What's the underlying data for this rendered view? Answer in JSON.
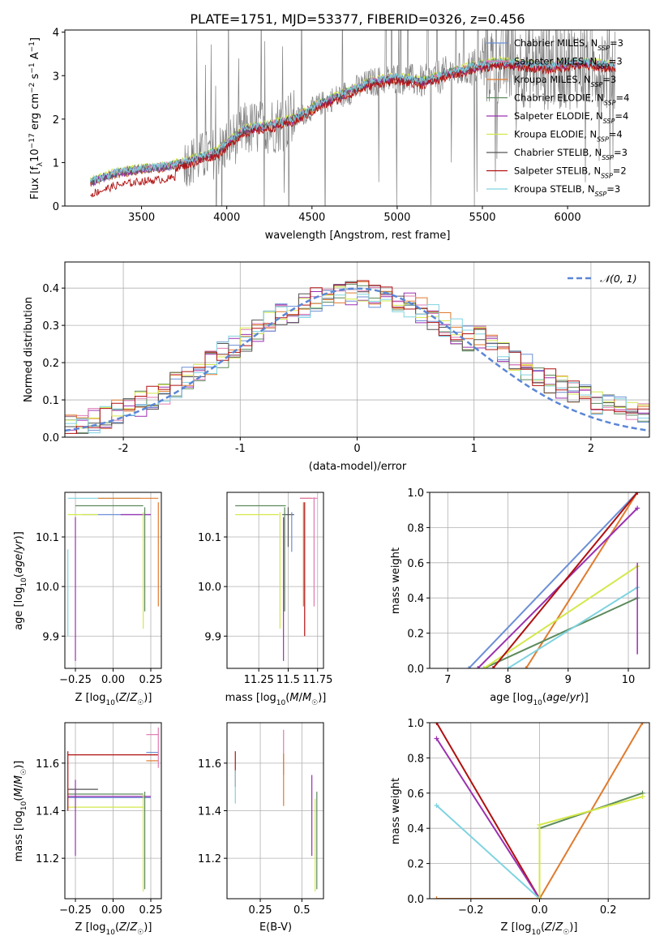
{
  "figure_title": "PLATE=1751, MJD=53377, FIBERID=0326, z=0.456",
  "series_legend": [
    {
      "label": "Chabrier MILES, N",
      "sub": "SSP",
      "tail": "=3",
      "color": "#6b8fd6"
    },
    {
      "label": "Salpeter MILES, N",
      "sub": "SSP",
      "tail": "=3",
      "color": "#e07ab2"
    },
    {
      "label": "Kroupa MILES, N",
      "sub": "SSP",
      "tail": "=3",
      "color": "#e07b2e"
    },
    {
      "label": "Chabrier ELODIE, N",
      "sub": "SSP",
      "tail": "=4",
      "color": "#5c8a5c"
    },
    {
      "label": "Salpeter ELODIE, N",
      "sub": "SSP",
      "tail": "=4",
      "color": "#9b30b0"
    },
    {
      "label": "Kroupa ELODIE, N",
      "sub": "SSP",
      "tail": "=4",
      "color": "#d4e84a"
    },
    {
      "label": "Chabrier STELIB, N",
      "sub": "SSP",
      "tail": "=3",
      "color": "#555555"
    },
    {
      "label": "Salpeter STELIB, N",
      "sub": "SSP",
      "tail": "=2",
      "color": "#b01010"
    },
    {
      "label": "Kroupa STELIB, N",
      "sub": "SSP",
      "tail": "=3",
      "color": "#7fd3e0"
    }
  ],
  "chart_data": [
    {
      "type": "line",
      "title": "PLATE=1751, MJD=53377, FIBERID=0326, z=0.456",
      "xlabel": "wavelength [Angstrom, rest frame]",
      "ylabel": "Flux [f_λ 10^-17 erg cm^-2 s^-1 A^-1]",
      "xlim": [
        3050,
        6480
      ],
      "ylim": [
        0,
        4.05
      ],
      "xticks": [
        3500,
        4000,
        4500,
        5000,
        5500,
        6000
      ],
      "yticks": [
        0,
        1,
        2,
        3,
        4
      ],
      "data_color": "#808080",
      "continuum_x": [
        3200,
        3350,
        3500,
        3650,
        3800,
        3950,
        4100,
        4250,
        4400,
        4550,
        4700,
        4850,
        5000,
        5150,
        5300,
        5450,
        5600,
        5750,
        5900,
        6050,
        6200,
        6280
      ],
      "continuum_y": [
        0.55,
        0.75,
        0.85,
        0.9,
        1.05,
        1.25,
        1.75,
        1.85,
        2.0,
        2.35,
        2.6,
        2.85,
        2.95,
        2.85,
        3.05,
        3.2,
        3.3,
        3.25,
        3.2,
        3.3,
        3.25,
        3.2
      ]
    },
    {
      "type": "line",
      "xlabel": "(data-model)/error",
      "ylabel": "Normed distribution",
      "xlim": [
        -2.5,
        2.5
      ],
      "ylim": [
        0,
        0.47
      ],
      "xticks": [
        -2,
        -1,
        0,
        1,
        2
      ],
      "yticks": [
        0.0,
        0.1,
        0.2,
        0.3,
        0.4
      ],
      "grid": true,
      "reference_curve": {
        "label": "𝒩(0, 1)",
        "color": "#5b86d6",
        "style": "dashed"
      },
      "legend_position": "upper right",
      "histogram_bin_width": 0.1,
      "histogram_peak": 0.4
    },
    {
      "type": "scatter",
      "xlabel": "Z [log10(Z/Z☉)]",
      "ylabel": "age [log10(age/yr)]",
      "xlim": [
        -0.32,
        0.32
      ],
      "ylim": [
        9.835,
        10.19
      ],
      "xticks": [
        -0.25,
        0.0,
        0.25
      ],
      "xticklabels": [
        "−0.25",
        "0.00",
        "0.25"
      ],
      "yticks": [
        9.9,
        10.0,
        10.1
      ],
      "grid": true,
      "segments": [
        {
          "series": 8,
          "x": [
            -0.3,
            0.18
          ],
          "y": [
            10.178,
            10.178
          ]
        },
        {
          "series": 2,
          "x": [
            -0.1,
            0.3
          ],
          "y": [
            10.178,
            10.178
          ]
        },
        {
          "series": 3,
          "x": [
            -0.25,
            0.2
          ],
          "y": [
            10.163,
            10.163
          ]
        },
        {
          "series": 0,
          "x": [
            -0.2,
            0.25
          ],
          "y": [
            10.145,
            10.145
          ]
        },
        {
          "series": 5,
          "x": [
            -0.3,
            -0.1
          ],
          "y": [
            10.145,
            10.145
          ]
        },
        {
          "series": 4,
          "x": [
            0.05,
            0.25
          ],
          "y": [
            10.145,
            10.145
          ]
        },
        {
          "series": 8,
          "vx": -0.3,
          "y": [
            9.9,
            10.075
          ]
        },
        {
          "series": 4,
          "vx": -0.25,
          "y": [
            9.85,
            10.14
          ]
        },
        {
          "series": 5,
          "vx": 0.2,
          "y": [
            9.915,
            10.15
          ]
        },
        {
          "series": 3,
          "vx": 0.21,
          "y": [
            9.95,
            10.16
          ]
        },
        {
          "series": 2,
          "vx": 0.3,
          "y": [
            9.96,
            10.17
          ]
        }
      ]
    },
    {
      "type": "scatter",
      "xlabel": "mass [log10(M/M☉)]",
      "xlim": [
        10.98,
        11.8
      ],
      "ylim": [
        9.835,
        10.19
      ],
      "xticks": [
        11.25,
        11.5,
        11.75
      ],
      "yticks": [
        9.9,
        10.0,
        10.1
      ],
      "grid": true,
      "segments": [
        {
          "series": 3,
          "x": [
            11.05,
            11.48
          ],
          "y": [
            10.163,
            10.163
          ]
        },
        {
          "series": 5,
          "x": [
            11.05,
            11.42
          ],
          "y": [
            10.145,
            10.145
          ]
        },
        {
          "series": 6,
          "x": [
            11.45,
            11.55
          ],
          "y": [
            10.145,
            10.145
          ]
        },
        {
          "series": 2,
          "x": [
            11.6,
            11.7
          ],
          "y": [
            10.178,
            10.178
          ]
        },
        {
          "series": 1,
          "x": [
            11.6,
            11.75
          ],
          "y": [
            10.178,
            10.178
          ]
        },
        {
          "series": 5,
          "vx": 11.43,
          "y": [
            9.915,
            10.15
          ]
        },
        {
          "series": 4,
          "vx": 11.46,
          "y": [
            9.85,
            10.14
          ]
        },
        {
          "series": 3,
          "vx": 11.47,
          "y": [
            9.95,
            10.16
          ]
        },
        {
          "series": 6,
          "vx": 11.5,
          "y": [
            10.08,
            10.16
          ]
        },
        {
          "series": 0,
          "vx": 11.53,
          "y": [
            10.07,
            10.15
          ]
        },
        {
          "series": 2,
          "vx": 11.63,
          "y": [
            9.96,
            10.17
          ]
        },
        {
          "series": 7,
          "vx": 11.64,
          "y": [
            9.9,
            10.17
          ]
        },
        {
          "series": 1,
          "vx": 11.72,
          "y": [
            9.96,
            10.18
          ]
        }
      ]
    },
    {
      "type": "line",
      "xlabel": "age [log10(age/yr)]",
      "ylabel": "mass weight",
      "xlim": [
        6.7,
        10.35
      ],
      "ylim": [
        0,
        1.0
      ],
      "xticks": [
        7,
        8,
        9,
        10
      ],
      "yticks": [
        0.0,
        0.2,
        0.4,
        0.6,
        0.8,
        1.0
      ],
      "grid": true,
      "series": [
        {
          "series": 0,
          "x": [
            7.35,
            10.15
          ],
          "y": [
            0.0,
            1.0
          ]
        },
        {
          "series": 2,
          "x": [
            8.3,
            10.15
          ],
          "y": [
            0.0,
            1.0
          ]
        },
        {
          "series": 3,
          "x": [
            7.6,
            10.15
          ],
          "y": [
            0.0,
            0.4
          ]
        },
        {
          "series": 4,
          "x": [
            7.5,
            10.15
          ],
          "y": [
            0.0,
            0.91
          ]
        },
        {
          "series": 5,
          "x": [
            7.6,
            10.15
          ],
          "y": [
            0.0,
            0.58
          ]
        },
        {
          "series": 7,
          "x": [
            7.75,
            10.15
          ],
          "y": [
            0.0,
            1.0
          ]
        },
        {
          "series": 8,
          "x": [
            8.0,
            10.15
          ],
          "y": [
            0.0,
            0.46
          ]
        }
      ]
    },
    {
      "type": "scatter",
      "xlabel": "Z [log10(Z/Z☉)]",
      "ylabel": "mass [log10(M/M☉)]",
      "xlim": [
        -0.32,
        0.32
      ],
      "ylim": [
        11.03,
        11.77
      ],
      "xticks": [
        -0.25,
        0.0,
        0.25
      ],
      "xticklabels": [
        "−0.25",
        "0.00",
        "0.25"
      ],
      "yticks": [
        11.2,
        11.4,
        11.6
      ],
      "grid": true,
      "segments": [
        {
          "series": 7,
          "x": [
            -0.3,
            0.3
          ],
          "y": [
            11.635,
            11.635
          ]
        },
        {
          "series": 6,
          "x": [
            -0.3,
            -0.1
          ],
          "y": [
            11.49,
            11.49
          ]
        },
        {
          "series": 3,
          "x": [
            -0.3,
            0.2
          ],
          "y": [
            11.47,
            11.47
          ]
        },
        {
          "series": 4,
          "x": [
            -0.3,
            0.25
          ],
          "y": [
            11.46,
            11.46
          ]
        },
        {
          "series": 0,
          "x": [
            -0.3,
            0.25
          ],
          "y": [
            11.455,
            11.455
          ]
        },
        {
          "series": 5,
          "x": [
            -0.3,
            0.2
          ],
          "y": [
            11.415,
            11.415
          ]
        },
        {
          "series": 1,
          "x": [
            0.22,
            0.3
          ],
          "y": [
            11.72,
            11.72
          ]
        },
        {
          "series": 0,
          "x": [
            0.22,
            0.3
          ],
          "y": [
            11.645,
            11.645
          ]
        },
        {
          "series": 2,
          "x": [
            0.22,
            0.3
          ],
          "y": [
            11.61,
            11.61
          ]
        },
        {
          "series": 7,
          "vx": -0.3,
          "y": [
            11.4,
            11.65
          ]
        },
        {
          "series": 4,
          "vx": -0.25,
          "y": [
            11.21,
            11.53
          ]
        },
        {
          "series": 5,
          "vx": 0.2,
          "y": [
            11.06,
            11.47
          ]
        },
        {
          "series": 3,
          "vx": 0.21,
          "y": [
            11.07,
            11.48
          ]
        },
        {
          "series": 1,
          "vx": 0.3,
          "y": [
            11.58,
            11.75
          ]
        }
      ]
    },
    {
      "type": "scatter",
      "xlabel": "E(B-V)",
      "xlim": [
        0.05,
        0.63
      ],
      "ylim": [
        11.03,
        11.77
      ],
      "xticks": [
        0.25,
        0.5
      ],
      "yticks": [
        11.2,
        11.4,
        11.6
      ],
      "grid": true,
      "segments": [
        {
          "series": 7,
          "vx": 0.1,
          "y": [
            11.5,
            11.65
          ]
        },
        {
          "series": 8,
          "vx": 0.1,
          "y": [
            11.43,
            11.57
          ]
        },
        {
          "series": 1,
          "vx": 0.39,
          "y": [
            11.55,
            11.74
          ]
        },
        {
          "series": 2,
          "vx": 0.39,
          "y": [
            11.42,
            11.64
          ]
        },
        {
          "series": 4,
          "vx": 0.56,
          "y": [
            11.21,
            11.55
          ]
        },
        {
          "series": 5,
          "vx": 0.58,
          "y": [
            11.06,
            11.45
          ]
        },
        {
          "series": 3,
          "vx": 0.59,
          "y": [
            11.07,
            11.48
          ]
        }
      ]
    },
    {
      "type": "line",
      "xlabel": "Z [log10(Z/Z☉)]",
      "ylabel": "mass weight",
      "xlim": [
        -0.32,
        0.32
      ],
      "ylim": [
        0,
        1.0
      ],
      "xticks": [
        -0.2,
        0.0,
        0.2
      ],
      "xticklabels": [
        "−0.2",
        "0.0",
        "0.2"
      ],
      "yticks": [
        0.0,
        0.2,
        0.4,
        0.6,
        0.8,
        1.0
      ],
      "grid": true,
      "series": [
        {
          "series": 7,
          "x": [
            -0.3,
            0.0
          ],
          "y": [
            1.0,
            0.0
          ]
        },
        {
          "series": 4,
          "x": [
            -0.3,
            0.0
          ],
          "y": [
            0.91,
            0.0
          ]
        },
        {
          "series": 8,
          "x": [
            -0.3,
            0.0
          ],
          "y": [
            0.53,
            0.0
          ]
        },
        {
          "series": 2,
          "x": [
            -0.3,
            0.0,
            0.3
          ],
          "y": [
            0.0,
            0.0,
            1.0
          ]
        },
        {
          "series": 3,
          "x": [
            0.0,
            0.0,
            0.3
          ],
          "y": [
            0.0,
            0.4,
            0.6
          ]
        },
        {
          "series": 5,
          "x": [
            0.0,
            0.0,
            0.3
          ],
          "y": [
            0.0,
            0.42,
            0.58
          ]
        }
      ]
    }
  ]
}
